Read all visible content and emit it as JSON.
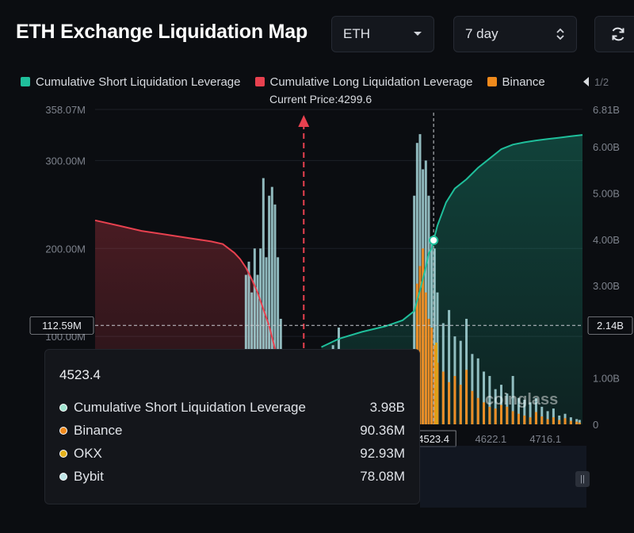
{
  "title": "ETH Exchange Liquidation Map",
  "controls": {
    "symbol": "ETH",
    "range": "7 day"
  },
  "legend": [
    {
      "label": "Cumulative Short Liquidation Leverage",
      "color": "#1fbf9b"
    },
    {
      "label": "Cumulative Long Liquidation Leverage",
      "color": "#e8414f"
    },
    {
      "label": "Binance",
      "color": "#f08a1c"
    }
  ],
  "legend_page": "1/2",
  "watermark": "coinglass",
  "chart_data": {
    "type": "bar",
    "current_price_label": "Current Price:4299.6",
    "current_price": 4299.6,
    "y_left_ticks": [
      "358.07M",
      "300.00M",
      "200.00M",
      "100.00M"
    ],
    "y_right_ticks": [
      "6.81B",
      "6.00B",
      "5.00B",
      "4.00B",
      "3.00B",
      "1.00B",
      "0"
    ],
    "x_ticks": [
      "4523.4",
      "4622.1",
      "4716.1"
    ],
    "crosshair": {
      "left_label": "112.59M",
      "right_label": "2.14B",
      "x_label": "4523.4"
    },
    "x_range": [
      3940,
      4780
    ],
    "y_left_range": [
      0,
      358.07
    ],
    "y_right_range": [
      0,
      6.81
    ],
    "series": [
      {
        "name": "Cumulative Short Liquidation Leverage",
        "color": "#1fbf9b",
        "unit": "B",
        "x": [
          4330,
          4360,
          4400,
          4440,
          4470,
          4490,
          4500,
          4510,
          4515,
          4520,
          4523.4,
          4530,
          4545,
          4560,
          4580,
          4600,
          4620,
          4640,
          4660,
          4680,
          4700,
          4720,
          4740,
          4760,
          4780
        ],
        "values": [
          1.67,
          1.85,
          2.0,
          2.12,
          2.25,
          2.45,
          2.9,
          3.4,
          3.7,
          3.8,
          3.98,
          4.3,
          4.8,
          5.1,
          5.3,
          5.55,
          5.75,
          5.95,
          6.05,
          6.1,
          6.14,
          6.17,
          6.2,
          6.23,
          6.26
        ]
      },
      {
        "name": "Cumulative Long Liquidation Leverage",
        "color": "#e8414f",
        "unit": "M",
        "x": [
          3940,
          3980,
          4020,
          4060,
          4100,
          4140,
          4160,
          4180,
          4190,
          4200,
          4210,
          4220,
          4240,
          4260,
          4280,
          4299.6
        ],
        "values": [
          232,
          226,
          220,
          216,
          212,
          208,
          205,
          195,
          188,
          178,
          165,
          150,
          112,
          60,
          20,
          0
        ]
      },
      {
        "name": "Binance",
        "color": "#f08a1c",
        "unit": "M",
        "x": [
          4200,
          4205,
          4210,
          4215,
          4220,
          4225,
          4230,
          4235,
          4240,
          4245,
          4250,
          4255,
          4260,
          4350,
          4360,
          4370,
          4380,
          4470,
          4480,
          4490,
          4495,
          4500,
          4505,
          4510,
          4515,
          4520,
          4525,
          4530,
          4540,
          4550,
          4560,
          4570,
          4580,
          4590,
          4600,
          4610,
          4620,
          4630,
          4640,
          4650,
          4660,
          4670,
          4680,
          4690,
          4700,
          4710,
          4720,
          4730,
          4740,
          4750,
          4760,
          4770,
          4775
        ],
        "values": [
          55,
          70,
          48,
          60,
          62,
          58,
          78,
          50,
          72,
          68,
          65,
          55,
          40,
          18,
          22,
          15,
          10,
          4,
          2,
          40,
          160,
          180,
          200,
          150,
          120,
          110,
          90,
          70,
          60,
          48,
          55,
          45,
          62,
          38,
          30,
          25,
          20,
          18,
          22,
          20,
          15,
          12,
          10,
          8,
          14,
          9,
          6,
          8,
          5,
          7,
          4,
          3,
          2
        ]
      },
      {
        "name": "OKX",
        "color": "#d9a417",
        "unit": "M",
        "x": [
          4523.4
        ],
        "values": [
          92.93
        ]
      },
      {
        "name": "Bybit",
        "color": "#a8d8dc",
        "unit": "M",
        "x": [
          4200,
          4205,
          4210,
          4215,
          4220,
          4225,
          4230,
          4235,
          4240,
          4245,
          4250,
          4255,
          4260,
          4350,
          4360,
          4370,
          4380,
          4390,
          4400,
          4410,
          4420,
          4470,
          4480,
          4490,
          4495,
          4500,
          4505,
          4510,
          4515,
          4520,
          4525,
          4530,
          4540,
          4550,
          4560,
          4570,
          4580,
          4590,
          4600,
          4610,
          4620,
          4630,
          4640,
          4650,
          4660,
          4670,
          4680,
          4690,
          4700,
          4710,
          4720,
          4730,
          4740,
          4750,
          4760,
          4770,
          4775
        ],
        "values": [
          170,
          185,
          150,
          200,
          170,
          200,
          280,
          190,
          260,
          270,
          250,
          190,
          120,
          90,
          110,
          70,
          45,
          30,
          28,
          40,
          25,
          8,
          5,
          260,
          320,
          330,
          290,
          300,
          260,
          210,
          200,
          150,
          115,
          130,
          100,
          95,
          120,
          80,
          75,
          60,
          55,
          40,
          45,
          35,
          55,
          30,
          28,
          25,
          30,
          20,
          15,
          18,
          10,
          12,
          8,
          6,
          5
        ]
      }
    ],
    "tooltip": {
      "title": "4523.4",
      "rows": [
        {
          "name": "Cumulative Short Liquidation Leverage",
          "value": "3.98B",
          "color": "#9fe3cf"
        },
        {
          "name": "Binance",
          "value": "90.36M",
          "color": "#f08a1c"
        },
        {
          "name": "OKX",
          "value": "92.93M",
          "color": "#e5b21d"
        },
        {
          "name": "Bybit",
          "value": "78.08M",
          "color": "#bfe6e8"
        }
      ]
    }
  }
}
